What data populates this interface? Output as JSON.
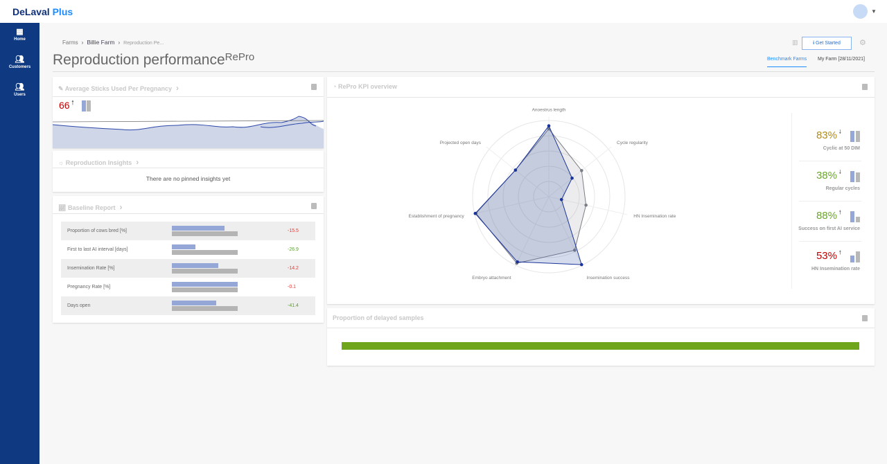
{
  "app": {
    "logo_main": "DeLaval",
    "logo_accent": "Plus"
  },
  "sidebar": {
    "items": [
      {
        "label": "Home",
        "icon": "grid-icon"
      },
      {
        "label": "Customers",
        "icon": "people-icon"
      },
      {
        "label": "Users",
        "icon": "people-icon"
      }
    ]
  },
  "breadcrumb": [
    "Farms",
    "Billie Farm",
    "Reproduction Pe..."
  ],
  "page": {
    "title": "Reproduction performance",
    "title_sup": "RePro"
  },
  "toolbar": {
    "get_started": "Get Started"
  },
  "tabs": [
    "Benchmark Farms",
    "My Farm [28/11/2021]"
  ],
  "sticks": {
    "title": "Average Sticks Used Per Pregnancy",
    "value": "66",
    "trend": "up",
    "value_color": "#c00000"
  },
  "insights": {
    "title": "Reproduction Insights",
    "empty": "There are no pinned insights yet"
  },
  "baseline": {
    "title": "Baseline Report",
    "rows": [
      {
        "label": "Proportion of cows bred [%]",
        "farm": 0.8,
        "benchmark": 1,
        "delta": "-15.5",
        "color": "#e53935"
      },
      {
        "label": "First to last AI interval [days]",
        "farm": 0.36,
        "benchmark": 1,
        "delta": "-26.9",
        "color": "#5a9e2f"
      },
      {
        "label": "Insemination Rate [%]",
        "farm": 0.7,
        "benchmark": 1,
        "delta": "-14.2",
        "color": "#e53935"
      },
      {
        "label": "Pregnancy Rate [%]",
        "farm": 1.0,
        "benchmark": 1,
        "delta": "-0.1",
        "color": "#e53935"
      },
      {
        "label": "Days open",
        "farm": 0.67,
        "benchmark": 1,
        "delta": "-41.4",
        "color": "#5a9e2f"
      }
    ]
  },
  "kpi_overview": {
    "title": "RePro KPI overview"
  },
  "chart_data": {
    "type": "radar",
    "axes": [
      "Anoestrus length",
      "Cycle regularity",
      "HN Insemination rate",
      "Insemination success",
      "Embryo attachment",
      "Establishment of pregnancy",
      "Projected open days"
    ],
    "rlim": [
      0,
      1
    ],
    "rings": 5,
    "series": [
      {
        "color": "#7a7d85",
        "values": [
          0.89,
          0.55,
          0.5,
          0.78,
          0.97,
          0.98,
          0.56
        ]
      },
      {
        "color": "#1a3399",
        "values": [
          0.93,
          0.39,
          0.17,
          0.99,
          0.95,
          0.99,
          0.56
        ]
      }
    ]
  },
  "kpis": [
    {
      "value": "83%",
      "trend": "down",
      "label": "Cyclic at 50 DIM",
      "color": "#b08a1a",
      "farm": 1,
      "bench": 1
    },
    {
      "value": "38%",
      "trend": "down",
      "label": "Regular cycles",
      "color": "#6aa52a",
      "farm": 1,
      "bench": 0.9
    },
    {
      "value": "88%",
      "trend": "up",
      "label": "Success on first AI service",
      "color": "#6aa52a",
      "farm": 1,
      "bench": 0.5
    },
    {
      "value": "53%",
      "trend": "up",
      "label": "HN Insemination rate",
      "color": "#c00000",
      "farm": 0.6,
      "bench": 1
    }
  ],
  "delayed": {
    "title": "Proportion of delayed samples",
    "fraction": 1,
    "color": "#6fa51c"
  }
}
